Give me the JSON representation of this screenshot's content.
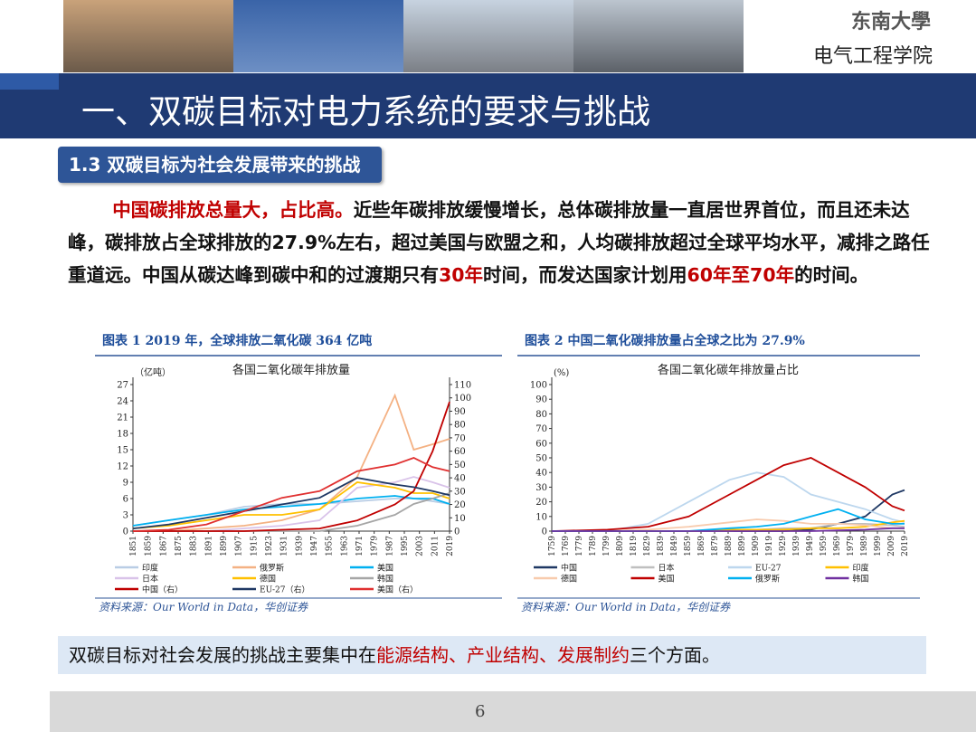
{
  "header": {
    "logo": "东南大學",
    "dept": "电气工程学院"
  },
  "title": "一、双碳目标对电力系统的要求与挑战",
  "section": "1.3 双碳目标为社会发展带来的挑战",
  "paragraph": [
    {
      "text": "中国碳排放总量大，占比高。",
      "emphasis": true
    },
    {
      "text": "近些年碳排放缓慢增长，总体碳排放量一直居世界首位，而且还未达峰，碳排放占全球排放的27.9%左右，超过美国与欧盟之和，人均碳排放超过全球平均水平，减排之路任重道远。中国从碳达峰到碳中和的过渡期只有",
      "emphasis": false
    },
    {
      "text": "30年",
      "emphasis": true
    },
    {
      "text": "时间，而发达国家计划用",
      "emphasis": false
    },
    {
      "text": "60年至70年",
      "emphasis": true
    },
    {
      "text": "的时间。",
      "emphasis": false
    }
  ],
  "chart_data": [
    {
      "type": "line",
      "caption": "图表 1   2019 年，全球排放二氧化碳 364 亿吨",
      "title": "各国二氧化碳年排放量",
      "ylabel": "（亿吨）",
      "source": "资料来源：Our World in Data，华创证券",
      "x": [
        1851,
        1870,
        1890,
        1910,
        1930,
        1950,
        1970,
        1990,
        2000,
        2010,
        2019
      ],
      "xlim": [
        1851,
        2019
      ],
      "xticks": [
        1851,
        1859,
        1867,
        1875,
        1883,
        1891,
        1899,
        1907,
        1915,
        1923,
        1931,
        1939,
        1947,
        1955,
        1963,
        1971,
        1979,
        1987,
        1995,
        2003,
        2011,
        2019
      ],
      "ylim": [
        0,
        27
      ],
      "yticks": [
        0,
        3,
        6,
        9,
        12,
        15,
        18,
        21,
        24,
        27
      ],
      "y2lim": [
        0,
        110
      ],
      "y2ticks": [
        0,
        10,
        20,
        30,
        40,
        50,
        60,
        70,
        80,
        90,
        100,
        110
      ],
      "series": [
        {
          "name": "印度",
          "color": "#b9cde5",
          "values": [
            1,
            2,
            3,
            4.5,
            5,
            5,
            5.5,
            6,
            6,
            5.5,
            5
          ]
        },
        {
          "name": "俄罗斯",
          "color": "#f4b183",
          "values": [
            0,
            0,
            0.5,
            1,
            2,
            4,
            10,
            25,
            15,
            16,
            17
          ]
        },
        {
          "name": "美国",
          "color": "#00b0f0",
          "values": [
            1,
            2,
            3,
            4,
            4.5,
            5,
            6,
            6.5,
            6,
            6,
            5
          ]
        },
        {
          "name": "日本",
          "color": "#d9c3e9",
          "values": [
            0,
            0,
            0,
            0.5,
            1,
            2,
            8,
            9,
            10,
            9,
            8
          ]
        },
        {
          "name": "德国",
          "color": "#ffc000",
          "values": [
            0.5,
            1,
            2,
            3,
            3,
            4,
            9,
            8,
            7,
            7,
            6
          ]
        },
        {
          "name": "韩国",
          "color": "#a6a6a6",
          "values": [
            0,
            0,
            0,
            0,
            0,
            0,
            1,
            3,
            5,
            6,
            7
          ]
        },
        {
          "name": "中国（右）",
          "color": "#c00000",
          "axis": "y2",
          "values": [
            0,
            0,
            0,
            0,
            1,
            2,
            8,
            20,
            30,
            60,
            97
          ]
        },
        {
          "name": "EU-27（右）",
          "color": "#1f3864",
          "axis": "y2",
          "values": [
            2,
            5,
            10,
            15,
            20,
            25,
            40,
            35,
            33,
            30,
            27
          ]
        },
        {
          "name": "美国（右）",
          "color": "#e03030",
          "axis": "y2",
          "values": [
            0,
            1,
            5,
            15,
            25,
            30,
            45,
            50,
            55,
            48,
            45
          ]
        }
      ]
    },
    {
      "type": "line",
      "caption": "图表 2   中国二氧化碳排放量占全球之比为 27.9%",
      "title": "各国二氧化碳年排放量占比",
      "ylabel": "(%)",
      "source": "资料来源：Our World in Data，华创证券",
      "x": [
        1759,
        1800,
        1830,
        1860,
        1890,
        1910,
        1930,
        1950,
        1970,
        1990,
        2010,
        2019
      ],
      "xlim": [
        1759,
        2019
      ],
      "xticks": [
        1759,
        1769,
        1779,
        1789,
        1799,
        1809,
        1819,
        1829,
        1839,
        1849,
        1859,
        1869,
        1879,
        1889,
        1899,
        1909,
        1919,
        1929,
        1939,
        1949,
        1959,
        1969,
        1979,
        1989,
        1999,
        2009,
        2019
      ],
      "ylim": [
        0,
        100
      ],
      "yticks": [
        0,
        10,
        20,
        30,
        40,
        50,
        60,
        70,
        80,
        90,
        100
      ],
      "series": [
        {
          "name": "中国",
          "color": "#1f3864",
          "values": [
            0,
            0,
            0,
            0,
            0,
            0,
            0,
            1,
            5,
            10,
            25,
            28
          ]
        },
        {
          "name": "日本",
          "color": "#bfbfbf",
          "values": [
            0,
            0,
            0,
            0,
            0,
            1,
            2,
            2,
            5,
            5,
            4,
            3
          ]
        },
        {
          "name": "EU-27",
          "color": "#bdd7ee",
          "values": [
            0,
            0,
            5,
            20,
            35,
            40,
            37,
            25,
            20,
            15,
            8,
            6
          ]
        },
        {
          "name": "印度",
          "color": "#ffc000",
          "values": [
            0,
            0,
            0,
            0,
            1,
            1,
            1,
            2,
            2,
            3,
            6,
            7
          ]
        },
        {
          "name": "德国",
          "color": "#f8cbad",
          "values": [
            0,
            0,
            1,
            3,
            6,
            8,
            7,
            5,
            5,
            4,
            2,
            2
          ]
        },
        {
          "name": "美国",
          "color": "#c00000",
          "values": [
            0,
            1,
            3,
            10,
            25,
            35,
            45,
            50,
            40,
            30,
            17,
            14
          ]
        },
        {
          "name": "俄罗斯",
          "color": "#00b0f0",
          "values": [
            0,
            0,
            0,
            0,
            2,
            3,
            5,
            10,
            15,
            8,
            5,
            5
          ]
        },
        {
          "name": "韩国",
          "color": "#7030a0",
          "values": [
            0,
            0,
            0,
            0,
            0,
            0,
            0,
            0,
            0.5,
            1,
            2,
            2
          ]
        }
      ]
    }
  ],
  "summary": [
    {
      "text": "双碳目标对社会发展的挑战主要集中在",
      "emphasis": false
    },
    {
      "text": "能源结构、产业结构、发展制约",
      "emphasis": true
    },
    {
      "text": "三个方面。",
      "emphasis": false
    }
  ],
  "footer": {
    "page": "6"
  }
}
